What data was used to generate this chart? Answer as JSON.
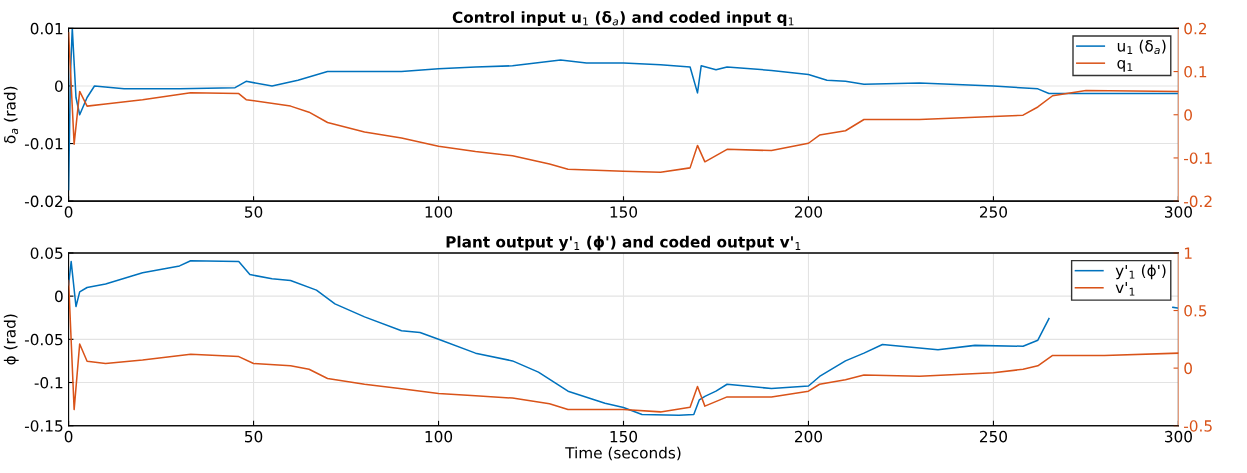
{
  "chart_data": [
    {
      "type": "line",
      "title": "Control input u$_{1}$ (δ$_{a}$) and coded input q$_{1}$",
      "ylabel": "δ$_{a}$ (rad)",
      "xlim": [
        0,
        300
      ],
      "xticks": [
        0,
        50,
        100,
        150,
        200,
        250,
        300
      ],
      "ylim": [
        -0.02,
        0.01
      ],
      "yticks": [
        -0.02,
        -0.01,
        0,
        0.01
      ],
      "y2lim": [
        -0.2,
        0.2
      ],
      "y2ticks": [
        -0.2,
        -0.1,
        0,
        0.1,
        0.2
      ],
      "grid": true,
      "legend": "top right",
      "series": [
        {
          "name": "u$_{1}$ (δ$_{a}$)",
          "color": "#0072bd",
          "x": [
            0,
            0.5,
            1,
            2,
            3,
            5,
            7,
            15,
            30,
            45,
            48,
            55,
            62,
            70,
            80,
            90,
            100,
            110,
            120,
            133,
            140,
            150,
            160,
            168,
            170,
            171,
            175,
            178,
            190,
            200,
            205,
            210,
            215,
            230,
            250,
            262,
            265,
            280,
            300
          ],
          "values": [
            -0.018,
            0.002,
            0.01,
            -0.002,
            -0.005,
            -0.002,
            0,
            -0.0005,
            -0.0005,
            -0.0003,
            0.0008,
            0,
            0.001,
            0.0025,
            0.0025,
            0.0025,
            0.003,
            0.0033,
            0.0035,
            0.0045,
            0.004,
            0.004,
            0.0037,
            0.0033,
            -0.0012,
            0.0035,
            0.0028,
            0.0033,
            0.0027,
            0.002,
            0.001,
            0.0008,
            0.0003,
            0.0005,
            0,
            -0.0005,
            -0.0013,
            -0.0013,
            -0.0013
          ]
        },
        {
          "name": "q$_{1}$",
          "color": "#d95319",
          "axis": "y2",
          "x": [
            0,
            1.5,
            3,
            5,
            10,
            20,
            33,
            46,
            48,
            60,
            65,
            70,
            80,
            90,
            100,
            110,
            120,
            130,
            135,
            150,
            160,
            168,
            170,
            172,
            178,
            190,
            200,
            203,
            210,
            215,
            230,
            250,
            258,
            262,
            266,
            275,
            300
          ],
          "values": [
            0.19,
            -0.068,
            0.054,
            0.02,
            0.025,
            0.035,
            0.051,
            0.049,
            0.035,
            0.02,
            0.006,
            -0.018,
            -0.04,
            -0.054,
            -0.073,
            -0.085,
            -0.095,
            -0.114,
            -0.126,
            -0.131,
            -0.133,
            -0.123,
            -0.071,
            -0.109,
            -0.08,
            -0.083,
            -0.066,
            -0.047,
            -0.037,
            -0.011,
            -0.011,
            -0.004,
            -0.001,
            0.018,
            0.044,
            0.056,
            0.054
          ]
        }
      ]
    },
    {
      "type": "line",
      "title": "Plant output y'$_{1}$ (ϕ') and coded output v'$_{1}$",
      "xlabel": "Time (seconds)",
      "ylabel": "ϕ (rad)",
      "xlim": [
        0,
        300
      ],
      "xticks": [
        0,
        50,
        100,
        150,
        200,
        250,
        300
      ],
      "ylim": [
        -0.15,
        0.05
      ],
      "yticks": [
        -0.15,
        -0.1,
        -0.05,
        0,
        0.05
      ],
      "y2lim": [
        -0.5,
        1
      ],
      "y2ticks": [
        -0.5,
        0,
        0.5,
        1
      ],
      "grid": true,
      "legend": "top right",
      "series": [
        {
          "name": "y'$_{1}$ (ϕ')",
          "color": "#0072bd",
          "x": [
            0,
            0.7,
            2,
            3,
            5,
            10,
            20,
            30,
            33,
            46,
            49,
            55,
            60,
            67,
            72,
            80,
            90,
            95,
            100,
            110,
            120,
            127,
            135,
            145,
            150,
            155,
            165,
            169,
            170.5,
            172,
            175,
            178,
            190,
            200,
            203,
            210,
            215,
            220,
            235,
            245,
            258,
            262,
            265,
            275,
            280,
            298.5,
            300
          ],
          "values": [
            0.013,
            0.04,
            -0.012,
            0.005,
            0.01,
            0.014,
            0.027,
            0.035,
            0.041,
            0.04,
            0.025,
            0.02,
            0.018,
            0.007,
            -0.009,
            -0.024,
            -0.04,
            -0.042,
            -0.05,
            -0.066,
            -0.075,
            -0.088,
            -0.11,
            -0.124,
            -0.129,
            -0.137,
            -0.138,
            -0.137,
            -0.12,
            -0.116,
            -0.11,
            -0.102,
            -0.107,
            -0.104,
            -0.093,
            -0.075,
            -0.066,
            -0.056,
            -0.062,
            -0.057,
            -0.058,
            -0.051,
            -0.026,
            null,
            null,
            -0.013,
            -0.014
          ]
        },
        {
          "name": "v'$_{1}$",
          "color": "#d95319",
          "axis": "y2",
          "x": [
            0,
            1.5,
            3,
            5,
            10,
            20,
            33,
            46,
            50,
            60,
            65,
            70,
            80,
            90,
            100,
            110,
            120,
            130,
            135,
            150,
            160,
            168,
            170,
            172,
            178,
            190,
            200,
            203,
            210,
            215,
            230,
            250,
            258,
            262,
            266,
            280,
            300
          ],
          "values": [
            0.76,
            -0.36,
            0.21,
            0.06,
            0.04,
            0.07,
            0.12,
            0.1,
            0.04,
            0.02,
            -0.01,
            -0.09,
            -0.14,
            -0.18,
            -0.22,
            -0.24,
            -0.26,
            -0.31,
            -0.36,
            -0.36,
            -0.38,
            -0.34,
            -0.16,
            -0.33,
            -0.25,
            -0.25,
            -0.2,
            -0.14,
            -0.1,
            -0.06,
            -0.07,
            -0.04,
            -0.01,
            0.02,
            0.11,
            0.11,
            0.13
          ]
        }
      ]
    }
  ]
}
